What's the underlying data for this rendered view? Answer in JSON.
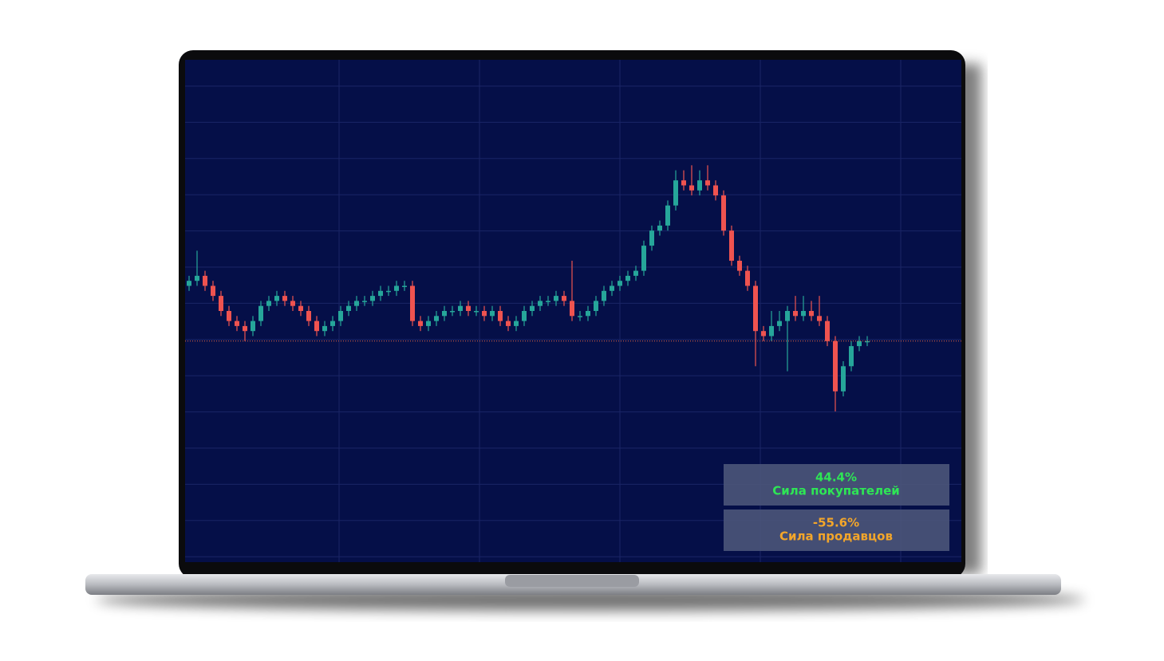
{
  "chart_data": {
    "type": "candlestick",
    "up_color": "#26a69a",
    "down_color": "#ef5350",
    "ylim": [
      0,
      100
    ],
    "open": [
      55,
      56,
      57,
      55,
      53,
      50,
      48,
      47,
      46,
      48,
      51,
      52,
      53,
      52,
      51,
      50,
      48,
      46,
      47,
      48,
      50,
      51,
      52,
      52,
      53,
      54,
      54,
      55,
      55,
      48,
      47,
      48,
      49,
      50,
      50,
      51,
      50,
      50,
      49,
      50,
      48,
      47,
      48,
      50,
      51,
      52,
      52,
      53,
      52,
      49,
      49,
      50,
      52,
      54,
      55,
      56,
      57,
      58,
      63,
      66,
      67,
      71,
      76,
      75,
      74,
      76,
      75,
      73,
      66,
      60,
      58,
      55,
      46,
      45,
      47,
      48,
      50,
      49,
      50,
      49,
      48,
      44,
      34,
      39,
      43,
      44
    ],
    "high": [
      57,
      62,
      58,
      56,
      54,
      51,
      49,
      48,
      49,
      52,
      53,
      54,
      54,
      53,
      52,
      51,
      49,
      48,
      49,
      51,
      52,
      53,
      53,
      54,
      55,
      55,
      56,
      56,
      56,
      49,
      49,
      50,
      51,
      51,
      52,
      52,
      51,
      51,
      51,
      51,
      49,
      49,
      51,
      52,
      53,
      53,
      54,
      54,
      60,
      50,
      51,
      53,
      55,
      56,
      57,
      58,
      59,
      64,
      67,
      68,
      72,
      78,
      78,
      79,
      78,
      79,
      76,
      74,
      67,
      61,
      59,
      56,
      47,
      50,
      50,
      51,
      53,
      53,
      52,
      53,
      49,
      45,
      40,
      44,
      45,
      45
    ],
    "low": [
      54,
      55,
      54,
      52,
      49,
      47,
      46,
      44,
      45,
      47,
      50,
      51,
      51,
      50,
      49,
      47,
      45,
      45,
      46,
      47,
      49,
      50,
      51,
      51,
      52,
      53,
      53,
      54,
      47,
      46,
      46,
      47,
      48,
      49,
      49,
      49,
      49,
      48,
      48,
      47,
      46,
      46,
      47,
      49,
      50,
      51,
      51,
      51,
      48,
      48,
      48,
      49,
      51,
      53,
      54,
      55,
      56,
      57,
      62,
      65,
      66,
      70,
      74,
      73,
      73,
      74,
      72,
      65,
      59,
      57,
      54,
      39,
      44,
      44,
      46,
      38,
      48,
      48,
      48,
      47,
      43,
      30,
      33,
      38,
      42,
      43
    ],
    "close": [
      56,
      57,
      55,
      53,
      50,
      48,
      47,
      46,
      48,
      51,
      52,
      53,
      52,
      51,
      50,
      48,
      46,
      47,
      48,
      50,
      51,
      52,
      52,
      53,
      54,
      54,
      55,
      55,
      48,
      47,
      48,
      49,
      50,
      50,
      51,
      50,
      50,
      49,
      50,
      48,
      47,
      48,
      50,
      51,
      52,
      52,
      53,
      52,
      49,
      49,
      50,
      52,
      54,
      55,
      56,
      57,
      58,
      63,
      66,
      67,
      71,
      76,
      75,
      74,
      76,
      75,
      73,
      66,
      60,
      58,
      55,
      46,
      45,
      47,
      48,
      50,
      49,
      50,
      49,
      48,
      44,
      34,
      39,
      43,
      44,
      44
    ]
  },
  "indicators": [
    {
      "value": "44.4%",
      "label": "Сила покупателей",
      "color": "#2ee655"
    },
    {
      "value": "-55.6%",
      "label": "Сила продавцов",
      "color": "#f3a62a"
    }
  ]
}
